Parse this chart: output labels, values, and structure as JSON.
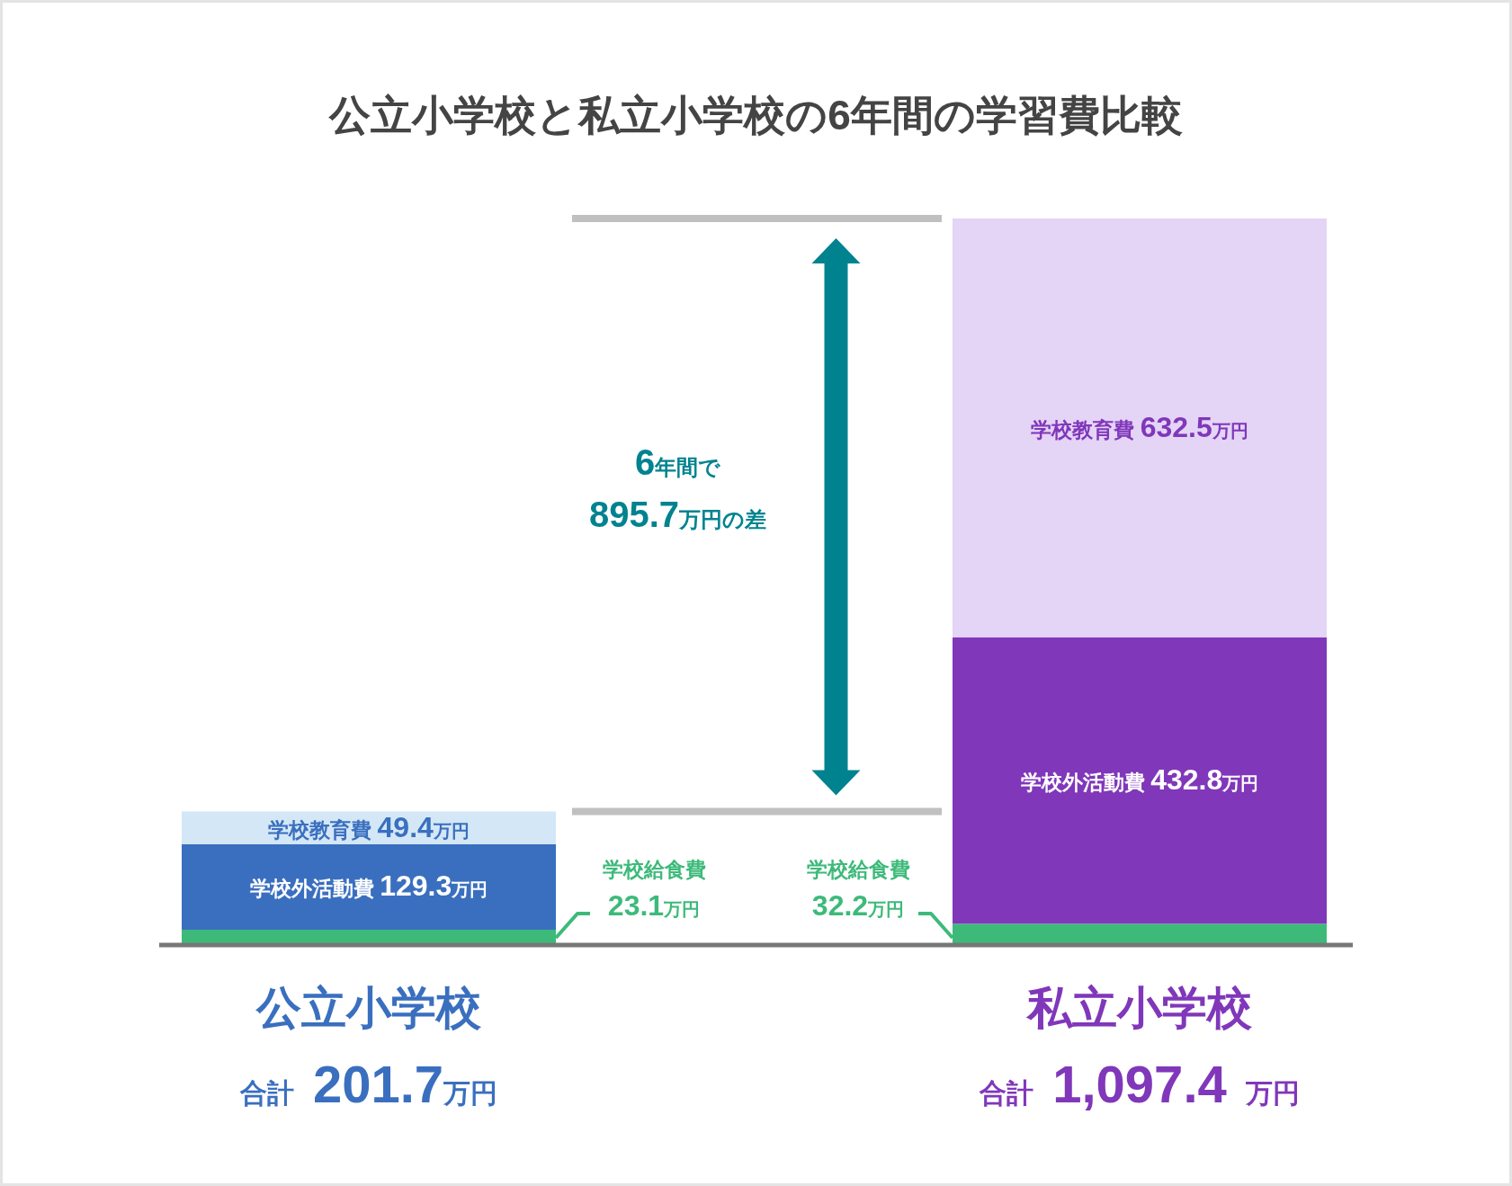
{
  "chart_data": {
    "type": "bar",
    "stacked": true,
    "title": "公立小学校と私立小学校の6年間の学習費比較",
    "categories": [
      "公立小学校",
      "私立小学校"
    ],
    "series": [
      {
        "name": "学校給食費",
        "colors": [
          "#3dba7a",
          "#3dba7a"
        ],
        "values": [
          23.1,
          32.2
        ],
        "value_labels": [
          "23.1万円",
          "32.2万円"
        ]
      },
      {
        "name": "学校外活動費",
        "colors": [
          "#3a6fbf",
          "#8037ba"
        ],
        "values": [
          129.3,
          432.8
        ],
        "value_labels": [
          "129.3万円",
          "432.8万円"
        ]
      },
      {
        "name": "学校教育費",
        "colors": [
          "#d3e7f6",
          "#e4d4f6"
        ],
        "values": [
          49.4,
          632.5
        ],
        "value_labels": [
          "49.4万円",
          "632.5万円"
        ]
      }
    ],
    "totals": [
      "合計 201.7万円",
      "合計 1,097.4 万円"
    ],
    "ref_lines": [
      {
        "axis": "y",
        "value": 201.7,
        "color": "#c0c0c0"
      },
      {
        "axis": "y",
        "value": 1097.4,
        "color": "#c0c0c0"
      }
    ],
    "annotations": [
      "6年間で\n895.7万円の差"
    ]
  }
}
